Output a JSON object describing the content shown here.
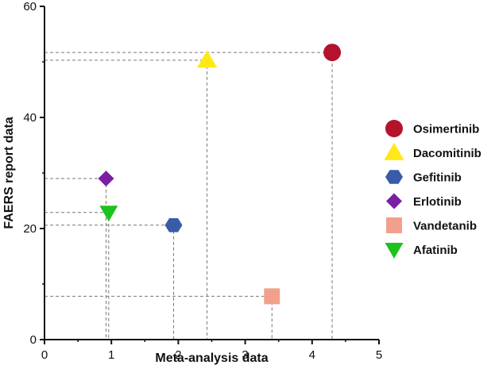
{
  "chart_data": {
    "type": "scatter",
    "xlabel": "Meta-analysis data",
    "ylabel": "FAERS report data",
    "xlim": [
      0,
      5
    ],
    "ylim": [
      0,
      60
    ],
    "x_ticks": [
      "0",
      "1",
      "2",
      "3",
      "4",
      "5"
    ],
    "y_ticks": [
      "0",
      "20",
      "40",
      "60"
    ],
    "grid": false,
    "legend_position": "right",
    "reference_lines": "dashed",
    "series": [
      {
        "name": "Osimertinib",
        "marker": "circle",
        "color": "#b5122e",
        "x": 4.3,
        "y": 51.7
      },
      {
        "name": "Dacomitinib",
        "marker": "triangle-up",
        "color": "#ffe818",
        "x": 2.43,
        "y": 50.3
      },
      {
        "name": "Gefitinib",
        "marker": "hexagon",
        "color": "#3a5ba8",
        "x": 1.93,
        "y": 20.6
      },
      {
        "name": "Erlotinib",
        "marker": "diamond",
        "color": "#7b1fa2",
        "x": 0.92,
        "y": 29.0
      },
      {
        "name": "Vandetanib",
        "marker": "square",
        "color": "#f2a08c",
        "x": 3.4,
        "y": 7.8
      },
      {
        "name": "Afatinib",
        "marker": "triangle-down",
        "color": "#1ec21e",
        "x": 0.96,
        "y": 22.9
      }
    ]
  }
}
